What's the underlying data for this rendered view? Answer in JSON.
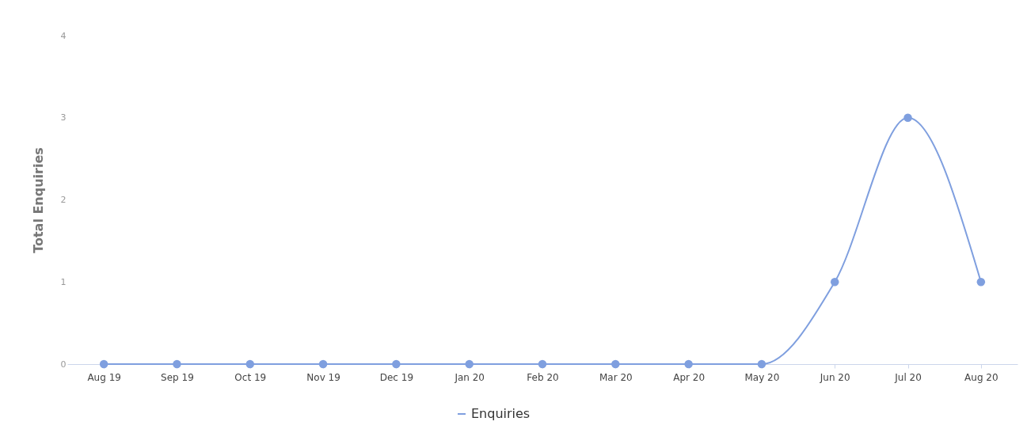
{
  "chart_data": {
    "type": "line",
    "ylabel": "Total Enquiries",
    "categories": [
      "Aug 19",
      "Sep 19",
      "Oct 19",
      "Nov 19",
      "Dec 19",
      "Jan 20",
      "Feb 20",
      "Mar 20",
      "Apr 20",
      "May 20",
      "Jun 20",
      "Jul 20",
      "Aug 20"
    ],
    "series": [
      {
        "name": "Enquiries",
        "color": "#7f9fdf",
        "values": [
          0,
          0,
          0,
          0,
          0,
          0,
          0,
          0,
          0,
          0,
          1,
          3,
          1
        ]
      }
    ],
    "ylim": [
      0,
      4
    ],
    "yticks": [
      0,
      1,
      2,
      3,
      4
    ],
    "grid": false,
    "legend": "bottom",
    "marker": "circle",
    "line_style": "solid"
  }
}
